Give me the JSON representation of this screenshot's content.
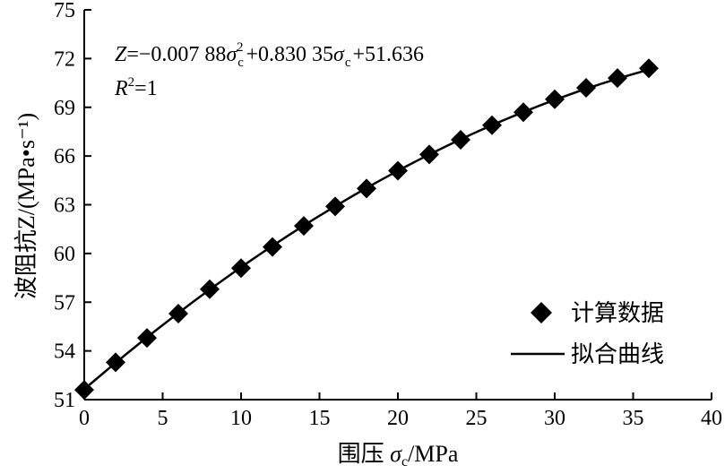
{
  "chart_data": {
    "type": "scatter",
    "title": "",
    "xlabel": "围压 σc/MPa",
    "ylabel": "波阻抗Z/(MPa•s⁻¹)",
    "xlim": [
      0,
      40
    ],
    "ylim": [
      51,
      75
    ],
    "xticks": [
      0,
      5,
      10,
      15,
      20,
      25,
      30,
      35,
      40
    ],
    "yticks": [
      51,
      54,
      57,
      60,
      63,
      66,
      69,
      72,
      75
    ],
    "grid": false,
    "legend_position": "bottom-right",
    "series": [
      {
        "name": "计算数据",
        "kind": "points",
        "marker": "diamond",
        "color": "#000000",
        "x": [
          0,
          2,
          4,
          6,
          8,
          10,
          12,
          14,
          16,
          18,
          20,
          22,
          24,
          26,
          28,
          30,
          32,
          34,
          36
        ],
        "y": [
          51.6,
          53.3,
          54.8,
          56.3,
          57.8,
          59.1,
          60.4,
          61.7,
          62.9,
          64.0,
          65.1,
          66.1,
          67.0,
          67.9,
          68.7,
          69.5,
          70.2,
          70.8,
          71.4
        ]
      },
      {
        "name": "拟合曲线",
        "kind": "line",
        "color": "#000000",
        "fit": {
          "a": -0.00788,
          "b": 0.83035,
          "c": 51.636
        }
      }
    ],
    "annotations": {
      "equation": {
        "z": "Z",
        "eq1": "=−0.007 88",
        "sigma": "σ",
        "sub": "c",
        "sup": "2",
        "eq2": "+0.830 35",
        "eq3": "+51.636"
      },
      "r2": {
        "r": "R",
        "sup": "2",
        "rest": "=1"
      }
    }
  }
}
